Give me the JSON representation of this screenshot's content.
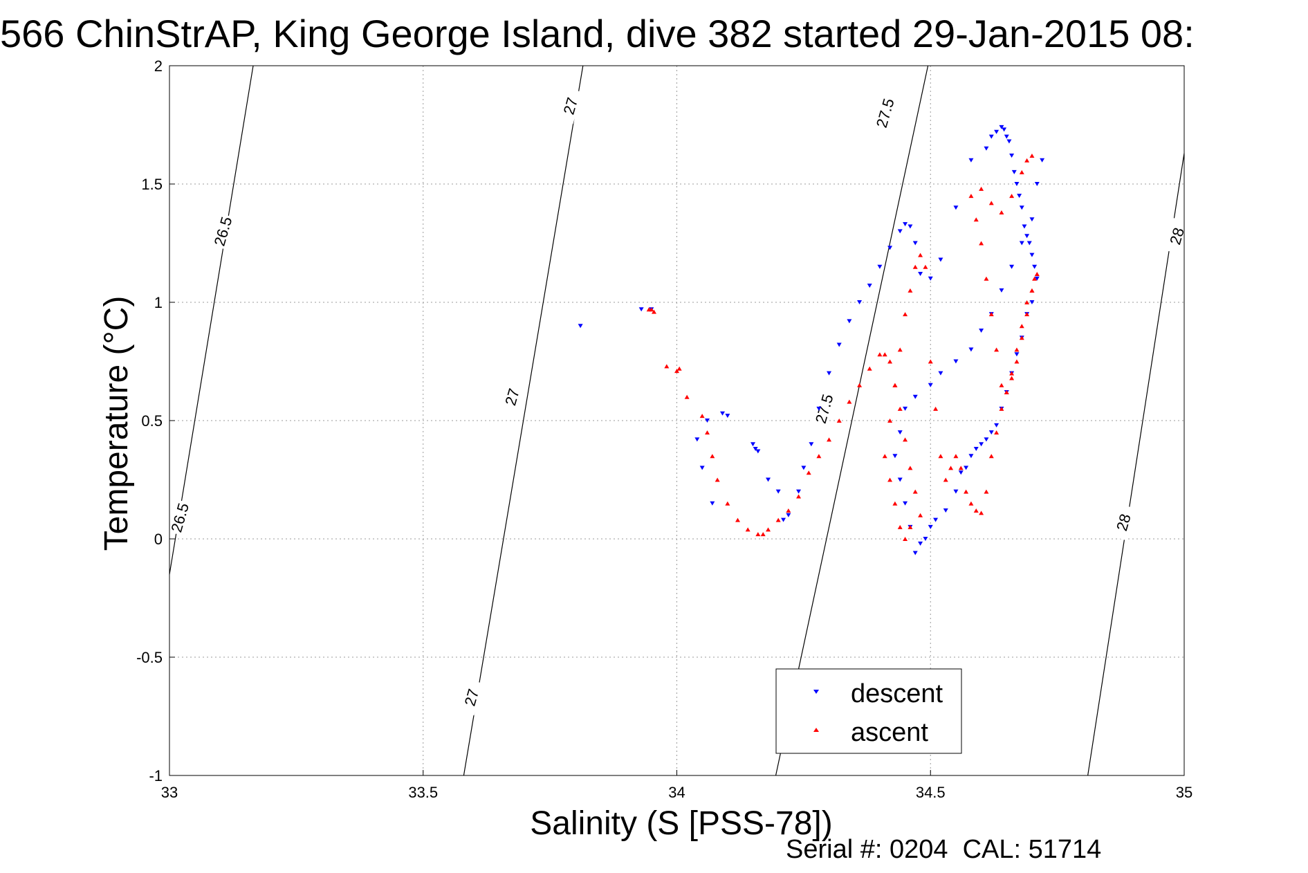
{
  "chart_data": {
    "type": "scatter",
    "title": "566 ChinStrAP, King George Island, dive 382 started 29-Jan-2015 08:",
    "xlabel": "Salinity (S [PSS-78])",
    "ylabel": "Temperature (°C)",
    "xlim": [
      33,
      35
    ],
    "ylim": [
      -1,
      2
    ],
    "xticks": [
      "33",
      "33.5",
      "34",
      "34.5",
      "35"
    ],
    "yticks": [
      "-1",
      "-0.5",
      "0",
      "0.5",
      "1",
      "1.5",
      "2"
    ],
    "grid": true,
    "legend_position": "bottom-center",
    "footer": "Serial #: 0204  CAL: 51714",
    "isopycnals": [
      {
        "label": "26.5",
        "x": [
          33.0,
          33.165
        ],
        "y": [
          -0.15,
          2.0
        ]
      },
      {
        "label": "27",
        "x": [
          33.58,
          33.815
        ],
        "y": [
          -1.0,
          2.0
        ]
      },
      {
        "label": "27.5",
        "x": [
          34.195,
          34.495
        ],
        "y": [
          -1.0,
          2.0
        ]
      },
      {
        "label": "28",
        "x": [
          34.81,
          35.0
        ],
        "y": [
          -1.0,
          1.63
        ]
      }
    ],
    "contour_labels": [
      {
        "text": "26.5",
        "x": 33.105,
        "y": 1.3
      },
      {
        "text": "26.5",
        "x": 33.02,
        "y": 0.09
      },
      {
        "text": "27",
        "x": 33.79,
        "y": 1.83
      },
      {
        "text": "27",
        "x": 33.675,
        "y": 0.6
      },
      {
        "text": "27",
        "x": 33.595,
        "y": -0.67
      },
      {
        "text": "27.5",
        "x": 34.41,
        "y": 1.8
      },
      {
        "text": "27.5",
        "x": 34.29,
        "y": 0.55
      },
      {
        "text": "28",
        "x": 34.985,
        "y": 1.28
      },
      {
        "text": "28",
        "x": 34.88,
        "y": 0.07
      }
    ],
    "series": [
      {
        "name": "descent",
        "color": "#0000ff",
        "marker": "triangle-down",
        "x": [
          33.81,
          33.93,
          33.95,
          34.06,
          34.09,
          34.1,
          34.04,
          34.05,
          34.07,
          34.15,
          34.155,
          34.16,
          34.18,
          34.2,
          34.21,
          34.22,
          34.24,
          34.25,
          34.265,
          34.28,
          34.3,
          34.32,
          34.34,
          34.36,
          34.38,
          34.4,
          34.42,
          34.44,
          34.45,
          34.46,
          34.47,
          34.48,
          34.5,
          34.52,
          34.55,
          34.58,
          34.61,
          34.62,
          34.63,
          34.64,
          34.645,
          34.65,
          34.655,
          34.66,
          34.665,
          34.67,
          34.675,
          34.68,
          34.685,
          34.69,
          34.695,
          34.7,
          34.705,
          34.71,
          34.7,
          34.69,
          34.68,
          34.67,
          34.66,
          34.65,
          34.64,
          34.63,
          34.62,
          34.61,
          34.6,
          34.59,
          34.58,
          34.57,
          34.56,
          34.55,
          34.53,
          34.51,
          34.5,
          34.49,
          34.48,
          34.47,
          34.46,
          34.45,
          34.44,
          34.43,
          34.44,
          34.45,
          34.47,
          34.5,
          34.52,
          34.55,
          34.58,
          34.6,
          34.62,
          34.64,
          34.66,
          34.68,
          34.7,
          34.71,
          34.72
        ],
        "y": [
          0.9,
          0.97,
          0.97,
          0.5,
          0.53,
          0.52,
          0.42,
          0.3,
          0.15,
          0.4,
          0.38,
          0.37,
          0.25,
          0.2,
          0.08,
          0.1,
          0.2,
          0.3,
          0.4,
          0.55,
          0.7,
          0.82,
          0.92,
          1.0,
          1.07,
          1.15,
          1.23,
          1.3,
          1.33,
          1.32,
          1.25,
          1.12,
          1.1,
          1.18,
          1.4,
          1.6,
          1.65,
          1.7,
          1.72,
          1.74,
          1.73,
          1.7,
          1.68,
          1.62,
          1.55,
          1.5,
          1.45,
          1.4,
          1.32,
          1.28,
          1.25,
          1.2,
          1.15,
          1.1,
          1.0,
          0.95,
          0.85,
          0.78,
          0.7,
          0.62,
          0.55,
          0.48,
          0.45,
          0.42,
          0.4,
          0.38,
          0.35,
          0.3,
          0.28,
          0.2,
          0.12,
          0.08,
          0.05,
          0.0,
          -0.02,
          -0.06,
          0.05,
          0.15,
          0.25,
          0.35,
          0.45,
          0.55,
          0.6,
          0.65,
          0.7,
          0.75,
          0.8,
          0.88,
          0.95,
          1.05,
          1.15,
          1.25,
          1.35,
          1.5,
          1.6
        ]
      },
      {
        "name": "ascent",
        "color": "#ff0000",
        "marker": "triangle-up",
        "x": [
          33.945,
          33.95,
          33.955,
          33.98,
          34.0,
          34.005,
          34.02,
          34.05,
          34.06,
          34.07,
          34.08,
          34.1,
          34.12,
          34.14,
          34.16,
          34.17,
          34.18,
          34.2,
          34.22,
          34.24,
          34.26,
          34.28,
          34.3,
          34.32,
          34.34,
          34.36,
          34.38,
          34.4,
          34.41,
          34.42,
          34.43,
          34.44,
          34.45,
          34.46,
          34.47,
          34.48,
          34.46,
          34.45,
          34.44,
          34.43,
          34.42,
          34.41,
          34.42,
          34.43,
          34.44,
          34.45,
          34.46,
          34.47,
          34.48,
          34.49,
          34.5,
          34.51,
          34.52,
          34.53,
          34.54,
          34.55,
          34.56,
          34.57,
          34.58,
          34.59,
          34.6,
          34.61,
          34.62,
          34.63,
          34.64,
          34.65,
          34.66,
          34.67,
          34.68,
          34.69,
          34.7,
          34.705,
          34.71,
          34.7,
          34.69,
          34.68,
          34.67,
          34.66,
          34.65,
          34.64,
          34.63,
          34.62,
          34.61,
          34.6,
          34.59,
          34.58,
          34.6,
          34.62,
          34.64,
          34.66,
          34.68,
          34.69,
          34.7
        ],
        "y": [
          0.97,
          0.97,
          0.96,
          0.73,
          0.71,
          0.72,
          0.6,
          0.52,
          0.45,
          0.35,
          0.25,
          0.15,
          0.08,
          0.04,
          0.02,
          0.02,
          0.04,
          0.08,
          0.12,
          0.18,
          0.28,
          0.35,
          0.42,
          0.5,
          0.58,
          0.65,
          0.72,
          0.78,
          0.78,
          0.75,
          0.65,
          0.55,
          0.42,
          0.3,
          0.2,
          0.1,
          0.05,
          0.0,
          0.05,
          0.15,
          0.25,
          0.35,
          0.5,
          0.65,
          0.8,
          0.95,
          1.05,
          1.15,
          1.2,
          1.15,
          0.75,
          0.55,
          0.35,
          0.25,
          0.3,
          0.35,
          0.3,
          0.2,
          0.15,
          0.12,
          0.11,
          0.2,
          0.35,
          0.45,
          0.55,
          0.62,
          0.7,
          0.8,
          0.9,
          1.0,
          1.05,
          1.1,
          1.12,
          1.05,
          0.95,
          0.85,
          0.75,
          0.68,
          0.62,
          0.65,
          0.8,
          0.95,
          1.1,
          1.25,
          1.35,
          1.45,
          1.48,
          1.42,
          1.38,
          1.45,
          1.55,
          1.6,
          1.62
        ]
      }
    ]
  }
}
